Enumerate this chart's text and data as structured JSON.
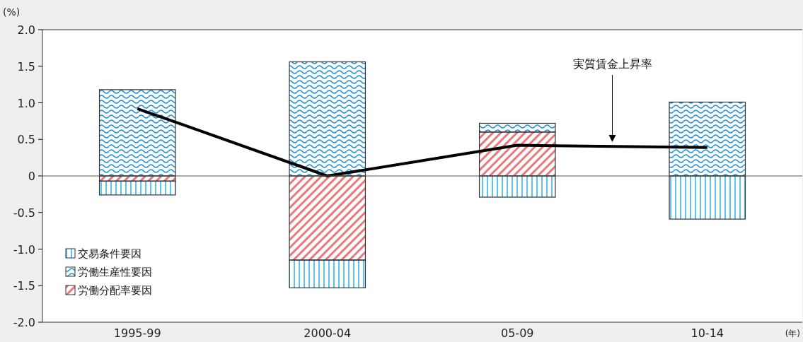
{
  "chart_data": {
    "type": "bar",
    "stacked": true,
    "ylabel": "(%)",
    "xlabel": "(年)",
    "categories": [
      "1995-99",
      "2000-04",
      "05-09",
      "10-14"
    ],
    "ylim": [
      -2,
      2
    ],
    "yticks": [
      {
        "value": -2,
        "label": "-2.0"
      },
      {
        "value": -1.5,
        "label": "-1.5"
      },
      {
        "value": -1,
        "label": "-1.0"
      },
      {
        "value": -0.5,
        "label": "-0.5"
      },
      0,
      {
        "value": 0.5,
        "label": "0.5"
      },
      {
        "value": 1,
        "label": "1.0"
      },
      {
        "value": 1.5,
        "label": "1.5"
      },
      {
        "value": 2,
        "label": "2.0"
      }
    ],
    "legend": "bottom left",
    "series": [
      {
        "name": "労働分配率要因",
        "color": "#e8797d",
        "values": [
          -0.07,
          -1.15,
          0.6,
          0.0
        ]
      },
      {
        "name": "労働生産性要因",
        "color": "#1b8fd8",
        "values": [
          1.18,
          1.56,
          0.12,
          1.01
        ]
      },
      {
        "name": "交易条件要因",
        "color": "#5ec3ee",
        "values": [
          -0.19,
          -0.38,
          -0.29,
          -0.59
        ]
      },
      {
        "name": "実質賃金上昇率",
        "type": "line",
        "color": "#000000",
        "values": [
          0.92,
          0.0,
          0.42,
          0.39
        ]
      }
    ]
  }
}
